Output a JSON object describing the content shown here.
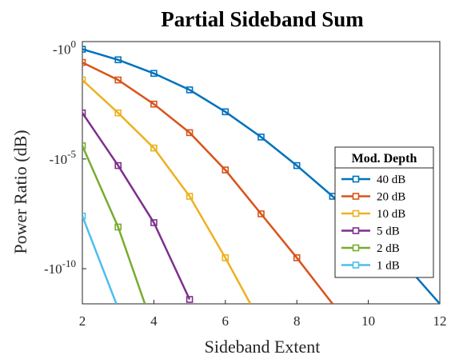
{
  "chart_data": {
    "type": "line",
    "title": "Partial Sideband Sum",
    "xlabel": "Sideband Extent",
    "ylabel": "Power Ratio (dB)",
    "xlim": [
      2,
      12
    ],
    "ylim": [
      -11.6,
      0.35
    ],
    "x_ticks": [
      {
        "value": 2,
        "label": "2"
      },
      {
        "value": 4,
        "label": "4"
      },
      {
        "value": 6,
        "label": "6"
      },
      {
        "value": 8,
        "label": "8"
      },
      {
        "value": 10,
        "label": "10"
      },
      {
        "value": 12,
        "label": "12"
      }
    ],
    "y_ticks": [
      {
        "value": -10,
        "base": "-10",
        "exp": "-10"
      },
      {
        "value": -5,
        "base": "-10",
        "exp": "-5"
      },
      {
        "value": 0,
        "base": "-10",
        "exp": "0"
      }
    ],
    "grid": false,
    "legend": {
      "title": "Mod. Depth",
      "position": "lower-right"
    },
    "series": [
      {
        "name": "40 dB",
        "color": "#0072BD",
        "x": [
          2,
          3,
          4,
          5,
          6,
          7,
          8,
          9,
          10,
          11,
          12
        ],
        "y": [
          0.0,
          -0.48,
          -1.1,
          -1.85,
          -2.85,
          -4.0,
          -5.3,
          -6.7,
          -8.2,
          -9.75,
          -11.6
        ]
      },
      {
        "name": "20 dB",
        "color": "#D95319",
        "x": [
          2,
          3,
          4,
          5,
          6,
          7,
          8,
          9
        ],
        "y": [
          -0.6,
          -1.4,
          -2.5,
          -3.8,
          -5.5,
          -7.5,
          -9.5,
          -11.6
        ]
      },
      {
        "name": "10 dB",
        "color": "#EDB120",
        "x": [
          2,
          3,
          4,
          5,
          6,
          6.7
        ],
        "y": [
          -1.4,
          -2.9,
          -4.5,
          -6.7,
          -9.5,
          -11.6
        ]
      },
      {
        "name": "5 dB",
        "color": "#7E2F8E",
        "x": [
          2,
          3,
          4,
          5
        ],
        "y": [
          -2.9,
          -5.3,
          -7.9,
          -11.4
        ]
      },
      {
        "name": "2 dB",
        "color": "#77AC30",
        "x": [
          2,
          3,
          3.75
        ],
        "y": [
          -4.4,
          -8.1,
          -11.6
        ]
      },
      {
        "name": "1 dB",
        "color": "#4DBEEE",
        "x": [
          2,
          2.95
        ],
        "y": [
          -7.6,
          -11.6
        ]
      }
    ],
    "markers": {
      "40 dB": [
        2,
        3,
        4,
        5,
        6,
        7,
        8,
        9,
        10,
        11
      ],
      "20 dB": [
        2,
        3,
        4,
        5,
        6,
        7,
        8
      ],
      "10 dB": [
        2,
        3,
        4,
        5,
        6
      ],
      "5 dB": [
        2,
        3,
        4,
        5
      ],
      "2 dB": [
        2,
        3
      ],
      "1 dB": [
        2
      ]
    }
  }
}
